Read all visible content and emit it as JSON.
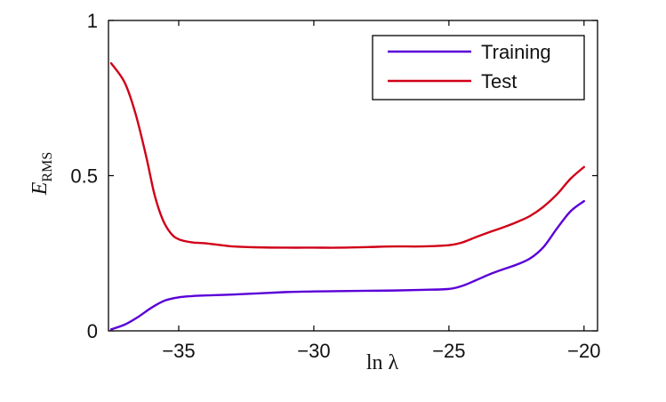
{
  "chart_data": {
    "type": "line",
    "xlabel": "ln λ",
    "ylabel_main": "E",
    "ylabel_sub": "RMS",
    "xlim": [
      -37.6,
      -19.5
    ],
    "ylim": [
      0,
      1
    ],
    "xticks": [
      -35,
      -30,
      -25,
      -20
    ],
    "xtick_labels": [
      "−35",
      "−30",
      "−25",
      "−20"
    ],
    "yticks": [
      0,
      0.5,
      1
    ],
    "ytick_labels": [
      "0",
      "0.5",
      "1"
    ],
    "grid": false,
    "legend_position": "top-right",
    "series": [
      {
        "name": "Training",
        "color": "#5a00d8",
        "x": [
          -37.5,
          -37,
          -36.5,
          -36,
          -35.5,
          -35,
          -34.5,
          -34,
          -33,
          -32,
          -31,
          -30,
          -29,
          -28,
          -27,
          -26,
          -25,
          -24.5,
          -24,
          -23.5,
          -23,
          -22.5,
          -22,
          -21.5,
          -21,
          -20.5,
          -20
        ],
        "y": [
          0.005,
          0.02,
          0.045,
          0.075,
          0.098,
          0.108,
          0.112,
          0.114,
          0.117,
          0.121,
          0.125,
          0.127,
          0.128,
          0.129,
          0.13,
          0.132,
          0.135,
          0.145,
          0.163,
          0.182,
          0.198,
          0.213,
          0.233,
          0.27,
          0.33,
          0.385,
          0.418
        ]
      },
      {
        "name": "Test",
        "color": "#d00018",
        "x": [
          -37.5,
          -37,
          -36.6,
          -36.2,
          -35.9,
          -35.6,
          -35.3,
          -35,
          -34.5,
          -34,
          -33,
          -32,
          -31,
          -30,
          -29,
          -28,
          -27,
          -26,
          -25,
          -24.5,
          -24,
          -23.5,
          -23,
          -22.5,
          -22,
          -21.5,
          -21,
          -20.5,
          -20
        ],
        "y": [
          0.862,
          0.8,
          0.7,
          0.56,
          0.44,
          0.36,
          0.315,
          0.295,
          0.285,
          0.282,
          0.272,
          0.269,
          0.268,
          0.268,
          0.268,
          0.27,
          0.272,
          0.272,
          0.276,
          0.285,
          0.302,
          0.318,
          0.333,
          0.35,
          0.37,
          0.4,
          0.44,
          0.49,
          0.528
        ]
      }
    ]
  }
}
